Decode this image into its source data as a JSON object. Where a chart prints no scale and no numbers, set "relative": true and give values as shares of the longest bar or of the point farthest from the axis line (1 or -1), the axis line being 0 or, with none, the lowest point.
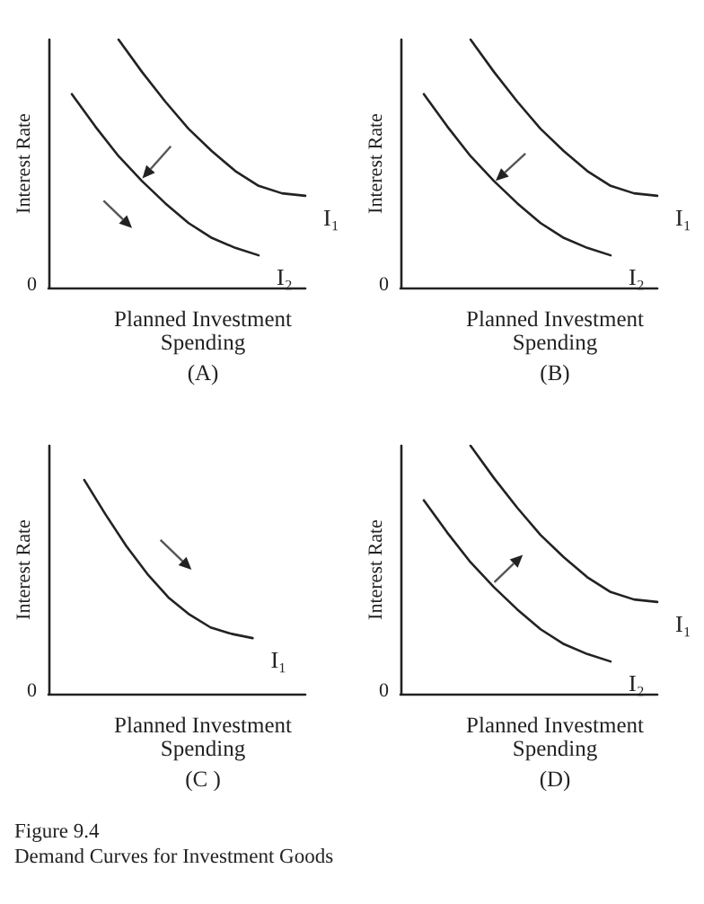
{
  "chart_data": [
    {
      "type": "line",
      "relative": true,
      "title": "(A)",
      "xlabel": "Planned Investment\nSpending",
      "ylabel": "Interest Rate",
      "annotations": [
        "0"
      ],
      "categories": [
        null,
        null,
        null,
        null,
        null,
        null,
        null,
        null,
        null,
        null,
        null,
        null
      ],
      "series": [
        {
          "name": "I₁",
          "color": "#222222",
          "values": [
            null,
            null,
            null,
            1.0,
            0.87,
            0.75,
            0.64,
            0.55,
            0.47,
            0.41,
            0.38,
            0.37
          ]
        },
        {
          "name": "I₂",
          "color": "#222222",
          "values": [
            null,
            0.78,
            0.65,
            0.53,
            0.43,
            0.34,
            0.26,
            0.2,
            0.16,
            0.13,
            null,
            null
          ]
        }
      ]
    },
    {
      "type": "line",
      "relative": true,
      "title": "(B)",
      "xlabel": "Planned Investment\nSpending",
      "ylabel": "Interest Rate",
      "annotations": [
        "0"
      ],
      "categories": [
        null,
        null,
        null,
        null,
        null,
        null,
        null,
        null,
        null,
        null,
        null,
        null
      ],
      "series": [
        {
          "name": "I₁",
          "color": "#222222",
          "values": [
            null,
            null,
            null,
            1.0,
            0.87,
            0.75,
            0.64,
            0.55,
            0.47,
            0.41,
            0.38,
            0.37
          ]
        },
        {
          "name": "I₂",
          "color": "#222222",
          "values": [
            null,
            0.78,
            0.65,
            0.53,
            0.43,
            0.34,
            0.26,
            0.2,
            0.16,
            0.13,
            null,
            null
          ]
        }
      ]
    },
    {
      "type": "line",
      "relative": true,
      "title": "(C )",
      "xlabel": "Planned Investment\nSpending",
      "ylabel": "Interest Rate",
      "annotations": [
        "0"
      ],
      "categories": [
        null,
        null,
        null,
        null,
        null,
        null,
        null,
        null,
        null
      ],
      "series": [
        {
          "name": "I₁",
          "color": "#222222",
          "values": [
            1.0,
            0.84,
            0.69,
            0.56,
            0.45,
            0.37,
            0.31,
            0.28,
            0.26
          ]
        }
      ]
    },
    {
      "type": "line",
      "relative": true,
      "title": "(D)",
      "xlabel": "Planned Investment\nSpending",
      "ylabel": "Interest Rate",
      "annotations": [
        "0"
      ],
      "categories": [
        null,
        null,
        null,
        null,
        null,
        null,
        null,
        null,
        null,
        null,
        null,
        null
      ],
      "series": [
        {
          "name": "I₁",
          "color": "#222222",
          "values": [
            null,
            null,
            null,
            1.0,
            0.87,
            0.75,
            0.64,
            0.55,
            0.47,
            0.41,
            0.38,
            0.37
          ]
        },
        {
          "name": "I₂",
          "color": "#222222",
          "values": [
            null,
            0.78,
            0.65,
            0.53,
            0.43,
            0.34,
            0.26,
            0.2,
            0.16,
            0.13,
            null,
            null
          ]
        }
      ]
    },
    {
      "type": "other",
      "title": "Figure 9.4",
      "subtitle": "Demand Curves for Investment Goods"
    }
  ]
}
